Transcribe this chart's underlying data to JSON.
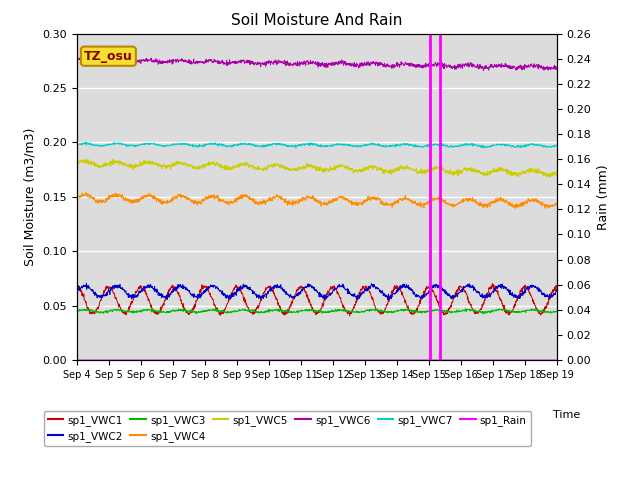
{
  "title": "Soil Moisture And Rain",
  "ylabel_left": "Soil Moisture (m3/m3)",
  "ylabel_right": "Rain (mm)",
  "xlabel": "Time",
  "ylim_left": [
    0.0,
    0.3
  ],
  "ylim_right": [
    0.0,
    0.26
  ],
  "n_points": 1500,
  "annotation_label": "TZ_osu",
  "annotation_box_color": "#f5e030",
  "annotation_text_color": "#8b0000",
  "annotation_edge_color": "#b8860b",
  "bg_color": "#dcdcdc",
  "series": {
    "sp1_VWC1": {
      "color": "#cc0000",
      "base": 0.055,
      "amp": 0.012,
      "period": 1.0,
      "phase": 0.5,
      "noise": 0.001,
      "trend": 0.0
    },
    "sp1_VWC2": {
      "color": "#0000cc",
      "base": 0.063,
      "amp": 0.005,
      "period": 1.0,
      "phase": 0.0,
      "noise": 0.001,
      "trend": 0.0
    },
    "sp1_VWC3": {
      "color": "#00bb00",
      "base": 0.045,
      "amp": 0.001,
      "period": 1.0,
      "phase": 0.0,
      "noise": 0.0005,
      "trend": 0.0
    },
    "sp1_VWC4": {
      "color": "#ff8c00",
      "base": 0.149,
      "amp": 0.003,
      "period": 1.0,
      "phase": 0.0,
      "noise": 0.001,
      "trend": -0.005
    },
    "sp1_VWC5": {
      "color": "#cccc00",
      "base": 0.181,
      "amp": 0.002,
      "period": 1.0,
      "phase": 0.0,
      "noise": 0.001,
      "trend": -0.009
    },
    "sp1_VWC6": {
      "color": "#aa00aa",
      "base": 0.276,
      "amp": 0.001,
      "period": 1.0,
      "phase": 0.0,
      "noise": 0.001,
      "trend": -0.007
    },
    "sp1_VWC7": {
      "color": "#00cccc",
      "base": 0.198,
      "amp": 0.001,
      "period": 1.0,
      "phase": 0.0,
      "noise": 0.0005,
      "trend": -0.001
    }
  },
  "rain_color": "#ff00ff",
  "rain_day1": 11.05,
  "rain_day2": 11.35,
  "xticks": [
    "Sep 4",
    "Sep 5",
    "Sep 6",
    "Sep 7",
    "Sep 8",
    "Sep 9",
    "Sep 10",
    "Sep 11",
    "Sep 12",
    "Sep 13",
    "Sep 14",
    "Sep 15",
    "Sep 16",
    "Sep 17",
    "Sep 18",
    "Sep 19"
  ],
  "yticks_left": [
    0.0,
    0.05,
    0.1,
    0.15,
    0.2,
    0.25,
    0.3
  ],
  "yticks_right": [
    0.0,
    0.02,
    0.04,
    0.06,
    0.08,
    0.1,
    0.12,
    0.14,
    0.16,
    0.18,
    0.2,
    0.22,
    0.24,
    0.26
  ],
  "legend_row1": [
    "sp1_VWC1",
    "sp1_VWC2",
    "sp1_VWC3",
    "sp1_VWC4",
    "sp1_VWC5",
    "sp1_VWC6"
  ],
  "legend_row2": [
    "sp1_VWC7",
    "sp1_Rain"
  ]
}
